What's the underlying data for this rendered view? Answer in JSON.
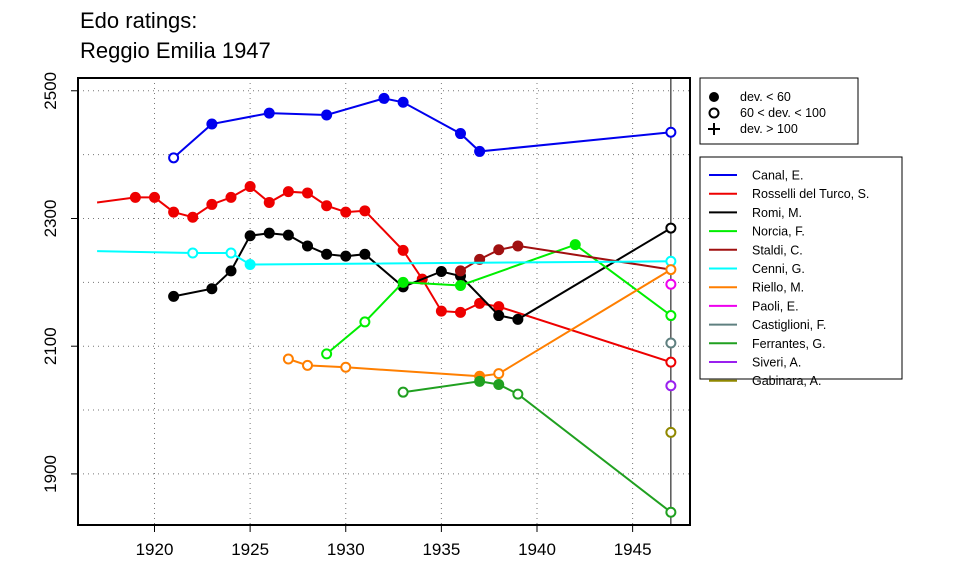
{
  "chart_data": {
    "type": "line",
    "title": [
      "Edo ratings:",
      "Reggio Emilia 1947"
    ],
    "xlabel": "",
    "ylabel": "",
    "xlim": [
      1916,
      1948
    ],
    "ylim": [
      1820,
      2520
    ],
    "xticks": [
      1920,
      1925,
      1930,
      1935,
      1940,
      1945
    ],
    "yticks": [
      1900,
      2100,
      2300,
      2500
    ],
    "ygrid": [
      1900,
      2000,
      2100,
      2200,
      2300,
      2400,
      2500
    ],
    "xgrid": [
      1920,
      1925,
      1930,
      1935,
      1940,
      1945
    ],
    "grid": true,
    "vline_x": 1947,
    "marker_legend": [
      {
        "label": "dev. < 60",
        "marker": "filled"
      },
      {
        "label": "60 < dev. < 100",
        "marker": "open"
      },
      {
        "label": "dev. > 100",
        "marker": "plus"
      }
    ],
    "series": [
      {
        "name": "Canal, E.",
        "color": "#0000EE",
        "points": [
          [
            1921,
            2395,
            "open"
          ],
          [
            1923,
            2448,
            "filled"
          ],
          [
            1926,
            2465,
            "filled"
          ],
          [
            1929,
            2462,
            "filled"
          ],
          [
            1932,
            2488,
            "filled"
          ],
          [
            1933,
            2482,
            "filled"
          ],
          [
            1936,
            2433,
            "filled"
          ],
          [
            1937,
            2405,
            "filled"
          ],
          [
            1947,
            2435,
            "open"
          ]
        ]
      },
      {
        "name": "Rosselli del Turco, S.",
        "color": "#EE0000",
        "points": [
          [
            1917,
            2325,
            "none"
          ],
          [
            1919,
            2333,
            "filled"
          ],
          [
            1920,
            2333,
            "filled"
          ],
          [
            1921,
            2310,
            "filled"
          ],
          [
            1922,
            2302,
            "filled"
          ],
          [
            1923,
            2322,
            "filled"
          ],
          [
            1924,
            2333,
            "filled"
          ],
          [
            1925,
            2350,
            "filled"
          ],
          [
            1926,
            2325,
            "filled"
          ],
          [
            1927,
            2342,
            "filled"
          ],
          [
            1928,
            2340,
            "filled"
          ],
          [
            1929,
            2320,
            "filled"
          ],
          [
            1930,
            2310,
            "filled"
          ],
          [
            1931,
            2312,
            "filled"
          ],
          [
            1933,
            2250,
            "filled"
          ],
          [
            1934,
            2205,
            "filled"
          ],
          [
            1935,
            2155,
            "filled"
          ],
          [
            1936,
            2153,
            "filled"
          ],
          [
            1937,
            2167,
            "filled"
          ],
          [
            1938,
            2162,
            "filled"
          ],
          [
            1947,
            2075,
            "open"
          ]
        ]
      },
      {
        "name": "Romi, M.",
        "color": "#000000",
        "points": [
          [
            1921,
            2178,
            "filled"
          ],
          [
            1923,
            2190,
            "filled"
          ],
          [
            1924,
            2218,
            "filled"
          ],
          [
            1925,
            2273,
            "filled"
          ],
          [
            1926,
            2277,
            "filled"
          ],
          [
            1927,
            2274,
            "filled"
          ],
          [
            1928,
            2257,
            "filled"
          ],
          [
            1929,
            2244,
            "filled"
          ],
          [
            1930,
            2241,
            "filled"
          ],
          [
            1931,
            2244,
            "filled"
          ],
          [
            1933,
            2193,
            "filled"
          ],
          [
            1935,
            2217,
            "filled"
          ],
          [
            1936,
            2210,
            "filled"
          ],
          [
            1938,
            2148,
            "filled"
          ],
          [
            1939,
            2142,
            "filled"
          ],
          [
            1947,
            2285,
            "open"
          ]
        ]
      },
      {
        "name": "Norcia, F.",
        "color": "#00EE00",
        "points": [
          [
            1929,
            2088,
            "open"
          ],
          [
            1931,
            2138,
            "open"
          ],
          [
            1933,
            2200,
            "filled"
          ],
          [
            1936,
            2195,
            "filled"
          ],
          [
            1942,
            2259,
            "filled"
          ],
          [
            1947,
            2148,
            "open"
          ]
        ]
      },
      {
        "name": "Staldi, C.",
        "color": "#A01010",
        "points": [
          [
            1936,
            2218,
            "filled"
          ],
          [
            1937,
            2236,
            "filled"
          ],
          [
            1938,
            2251,
            "filled"
          ],
          [
            1939,
            2257,
            "filled"
          ],
          [
            1947,
            2220,
            "none"
          ]
        ]
      },
      {
        "name": "Cenni, G.",
        "color": "#00FFFF",
        "points": [
          [
            1917,
            2249,
            "none"
          ],
          [
            1922,
            2246,
            "open"
          ],
          [
            1924,
            2246,
            "open"
          ],
          [
            1925,
            2228,
            "filled"
          ],
          [
            1947,
            2233,
            "open"
          ]
        ]
      },
      {
        "name": "Riello, M.",
        "color": "#FF7F00",
        "points": [
          [
            1927,
            2080,
            "open"
          ],
          [
            1928,
            2070,
            "open"
          ],
          [
            1930,
            2067,
            "open"
          ],
          [
            1937,
            2053,
            "filled"
          ],
          [
            1938,
            2057,
            "open"
          ],
          [
            1947,
            2220,
            "open"
          ]
        ]
      },
      {
        "name": "Paoli, E.",
        "color": "#EE00EE",
        "points": [
          [
            1947,
            2197,
            "open"
          ]
        ]
      },
      {
        "name": "Castiglioni, F.",
        "color": "#5F8080",
        "points": [
          [
            1947,
            2105,
            "open"
          ]
        ]
      },
      {
        "name": "Ferrantes, G.",
        "color": "#20A020",
        "points": [
          [
            1933,
            2028,
            "open"
          ],
          [
            1937,
            2045,
            "filled"
          ],
          [
            1938,
            2040,
            "filled"
          ],
          [
            1939,
            2025,
            "open"
          ],
          [
            1947,
            1840,
            "open"
          ]
        ]
      },
      {
        "name": "Siveri, A.",
        "color": "#9A20EE",
        "points": [
          [
            1947,
            2038,
            "open"
          ]
        ]
      },
      {
        "name": "Gabinara, A.",
        "color": "#908800",
        "points": [
          [
            1947,
            1965,
            "open"
          ]
        ]
      }
    ]
  }
}
